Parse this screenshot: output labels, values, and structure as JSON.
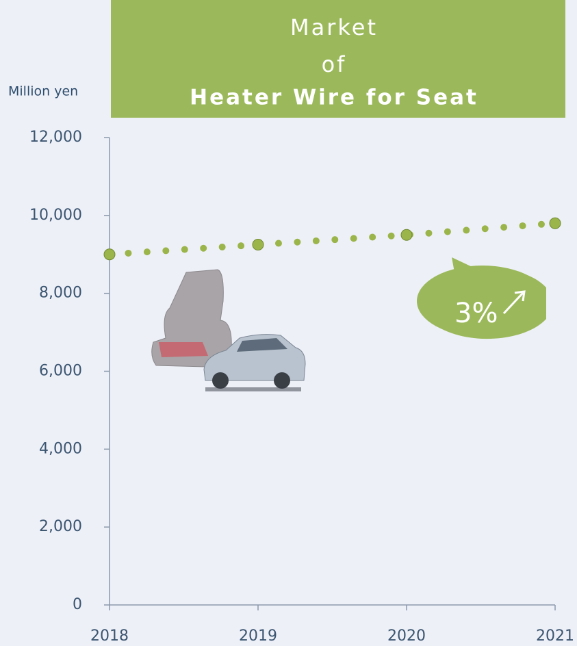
{
  "chart_data": {
    "type": "line",
    "title": [
      "Market",
      "of",
      "Heater Wire for Seat"
    ],
    "y_label": "Million yen",
    "annotation": "3%",
    "categories": [
      "2018",
      "2019",
      "2020",
      "2021"
    ],
    "series": [
      {
        "name": "Market",
        "color": "#9bb54a",
        "values": [
          9000,
          9250,
          9500,
          9800
        ]
      }
    ],
    "ylim": [
      0,
      12000
    ],
    "yticks": [
      0,
      {
        "value": 2000,
        "label": "2,000"
      },
      {
        "value": 4000,
        "label": "4,000"
      },
      {
        "value": 6000,
        "label": "6,000"
      },
      {
        "value": 8000,
        "label": "8,000"
      },
      {
        "value": 10000,
        "label": "10,000"
      },
      {
        "value": 12000,
        "label": "12,000"
      }
    ]
  }
}
